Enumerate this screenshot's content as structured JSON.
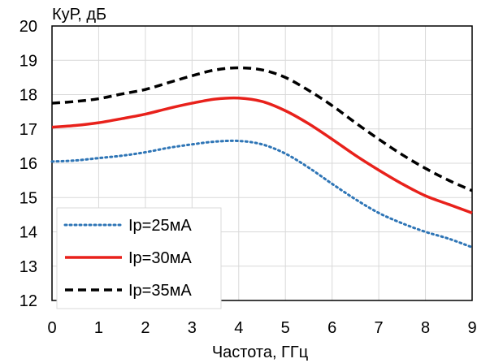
{
  "chart_data": {
    "type": "line",
    "title": "",
    "xlabel": "Частота, ГГц",
    "ylabel": "КуР, дБ",
    "xlim": [
      0,
      9
    ],
    "ylim": [
      12,
      20
    ],
    "xticks": [
      0,
      1,
      2,
      3,
      4,
      5,
      6,
      7,
      8,
      9
    ],
    "yticks": [
      12,
      13,
      14,
      15,
      16,
      17,
      18,
      19,
      20
    ],
    "grid": true,
    "legend_position": "bottom-left",
    "series": [
      {
        "name": "Ip=25мА",
        "color": "#2E75B6",
        "line_style": "dotted",
        "x": [
          0,
          0.5,
          1,
          1.5,
          2,
          2.5,
          3,
          3.5,
          4,
          4.5,
          5,
          5.5,
          6,
          6.5,
          7,
          7.5,
          8,
          8.5,
          9
        ],
        "y": [
          16.05,
          16.08,
          16.15,
          16.22,
          16.32,
          16.45,
          16.55,
          16.63,
          16.65,
          16.55,
          16.28,
          15.87,
          15.4,
          14.95,
          14.55,
          14.25,
          14.0,
          13.8,
          13.55
        ]
      },
      {
        "name": "Ip=30мА",
        "color": "#E8211B",
        "line_style": "solid",
        "x": [
          0,
          0.5,
          1,
          1.5,
          2,
          2.5,
          3,
          3.5,
          4,
          4.5,
          5,
          5.5,
          6,
          6.5,
          7,
          7.5,
          8,
          8.5,
          9
        ],
        "y": [
          17.05,
          17.1,
          17.18,
          17.3,
          17.43,
          17.6,
          17.75,
          17.87,
          17.9,
          17.8,
          17.53,
          17.15,
          16.7,
          16.23,
          15.8,
          15.4,
          15.05,
          14.8,
          14.55
        ]
      },
      {
        "name": "Ip=35мА",
        "color": "#000000",
        "line_style": "dashed",
        "x": [
          0,
          0.5,
          1,
          1.5,
          2,
          2.5,
          3,
          3.5,
          4,
          4.5,
          5,
          5.5,
          6,
          6.5,
          7,
          7.5,
          8,
          8.5,
          9
        ],
        "y": [
          17.75,
          17.8,
          17.88,
          18.02,
          18.15,
          18.35,
          18.55,
          18.72,
          18.78,
          18.72,
          18.5,
          18.12,
          17.68,
          17.18,
          16.7,
          16.25,
          15.85,
          15.5,
          15.2
        ]
      }
    ]
  }
}
